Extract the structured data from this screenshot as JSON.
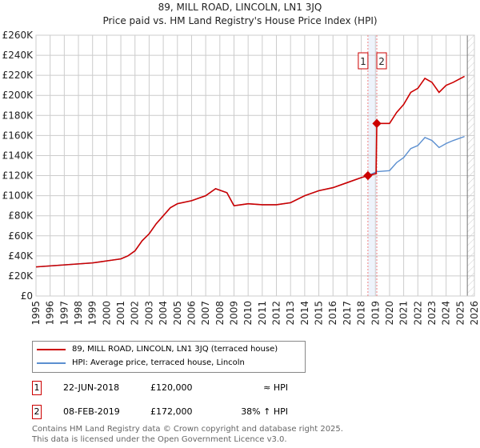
{
  "chart_data": {
    "type": "line",
    "title": "89, MILL ROAD, LINCOLN, LN1 3JQ",
    "subtitle": "Price paid vs. HM Land Registry's House Price Index (HPI)",
    "xlim": [
      1995,
      2026
    ],
    "ylim": [
      0,
      260000
    ],
    "x_ticks": [
      "1995",
      "1996",
      "1997",
      "1998",
      "1999",
      "2000",
      "2001",
      "2002",
      "2003",
      "2004",
      "2005",
      "2006",
      "2007",
      "2008",
      "2009",
      "2010",
      "2011",
      "2012",
      "2013",
      "2014",
      "2015",
      "2016",
      "2017",
      "2018",
      "2019",
      "2020",
      "2021",
      "2022",
      "2023",
      "2024",
      "2025",
      "2026"
    ],
    "y_ticks": [
      "£0",
      "£20K",
      "£40K",
      "£60K",
      "£80K",
      "£100K",
      "£120K",
      "£140K",
      "£160K",
      "£180K",
      "£200K",
      "£220K",
      "£240K",
      "£260K"
    ],
    "grid": true,
    "series": [
      {
        "name": "HPI: Average price, terraced house, Lincoln",
        "color": "#5b8fd0",
        "x": [
          1995,
          1996,
          1997,
          1998,
          1999,
          2000,
          2001,
          2001.5,
          2002,
          2002.5,
          2003,
          2003.5,
          2004,
          2004.5,
          2005,
          2006,
          2007,
          2007.7,
          2008.5,
          2009,
          2009.5,
          2010,
          2011,
          2012,
          2013,
          2014,
          2015,
          2016,
          2017,
          2018,
          2018.47,
          2019.1,
          2020,
          2020.5,
          2021,
          2021.5,
          2022,
          2022.5,
          2023,
          2023.5,
          2024,
          2024.5,
          2025.3
        ],
        "values": [
          29000,
          30000,
          31000,
          32000,
          33000,
          35000,
          37000,
          40000,
          45000,
          55000,
          62000,
          72000,
          80000,
          88000,
          92000,
          95000,
          100000,
          107000,
          103000,
          90000,
          91000,
          92000,
          91000,
          91000,
          93000,
          100000,
          105000,
          108000,
          113000,
          118000,
          120000,
          124000,
          125000,
          133000,
          138000,
          147000,
          150000,
          158000,
          155000,
          148000,
          152000,
          155000,
          159000
        ]
      },
      {
        "name": "89, MILL ROAD, LINCOLN, LN1 3JQ (terraced house)",
        "color": "#cc0000",
        "x": [
          1995,
          1996,
          1997,
          1998,
          1999,
          2000,
          2001,
          2001.5,
          2002,
          2002.5,
          2003,
          2003.5,
          2004,
          2004.5,
          2005,
          2006,
          2007,
          2007.7,
          2008.5,
          2009,
          2009.5,
          2010,
          2011,
          2012,
          2013,
          2014,
          2015,
          2016,
          2017,
          2018,
          2018.47,
          2019.05,
          2019.1,
          2020,
          2020.5,
          2021,
          2021.5,
          2022,
          2022.5,
          2023,
          2023.5,
          2024,
          2024.5,
          2025.3
        ],
        "values": [
          29000,
          30000,
          31000,
          32000,
          33000,
          35000,
          37000,
          40000,
          45000,
          55000,
          62000,
          72000,
          80000,
          88000,
          92000,
          95000,
          100000,
          107000,
          103000,
          90000,
          91000,
          92000,
          91000,
          91000,
          93000,
          100000,
          105000,
          108000,
          113000,
          118000,
          120000,
          122000,
          172000,
          172000,
          183000,
          191000,
          203000,
          207000,
          217000,
          213000,
          203000,
          210000,
          213000,
          219000
        ]
      }
    ],
    "sales": [
      {
        "id": "1",
        "x": 2018.47,
        "value": 120000,
        "date": "22-JUN-2018",
        "price": "£120,000",
        "hpi": "≈ HPI"
      },
      {
        "id": "2",
        "x": 2019.1,
        "value": 172000,
        "date": "08-FEB-2019",
        "price": "£172,000",
        "hpi": "38% ↑ HPI"
      }
    ],
    "data_end": 2025.5,
    "legend_placement": "below"
  },
  "footer": [
    "Contains HM Land Registry data © Crown copyright and database right 2025.",
    "This data is licensed under the Open Government Licence v3.0."
  ]
}
